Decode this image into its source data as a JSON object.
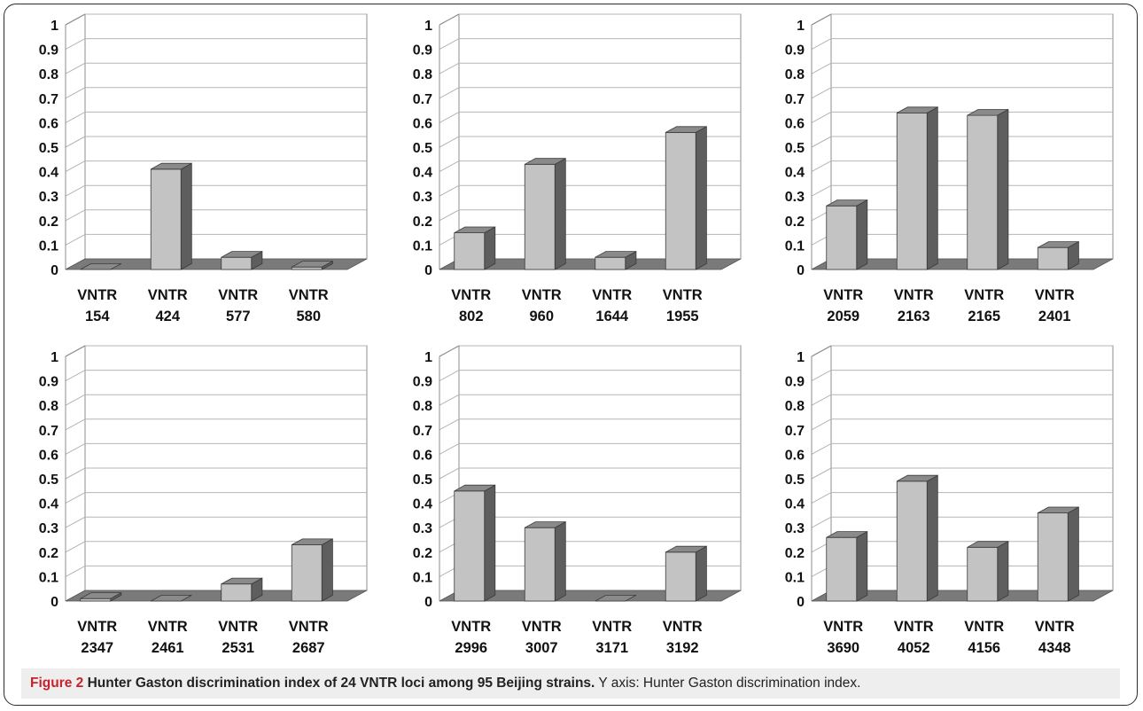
{
  "caption": {
    "label": "Figure 2",
    "title": "Hunter Gaston discrimination index of 24 VNTR loci among 95 Beijing strains.",
    "note": "Y axis: Hunter Gaston discrimination index."
  },
  "colors": {
    "bar_front": "#c3c3c3",
    "bar_top": "#8a8a8a",
    "bar_side": "#5e5e5e",
    "floor": "#7a7a7a",
    "grid": "#b5b5b5",
    "caption_label": "#c9202d"
  },
  "chart_data": [
    {
      "type": "bar",
      "style": "3d",
      "categories": [
        [
          "VNTR",
          "154"
        ],
        [
          "VNTR",
          "424"
        ],
        [
          "VNTR",
          "577"
        ],
        [
          "VNTR",
          "580"
        ]
      ],
      "values": [
        0.0,
        0.41,
        0.05,
        0.01
      ],
      "yticks": [
        "0",
        "0.1",
        "0.2",
        "0.3",
        "0.4",
        "0.5",
        "0.6",
        "0.7",
        "0.8",
        "0.9",
        "1"
      ],
      "ylim": [
        0,
        1
      ],
      "grid": true
    },
    {
      "type": "bar",
      "style": "3d",
      "categories": [
        [
          "VNTR",
          "802"
        ],
        [
          "VNTR",
          "960"
        ],
        [
          "VNTR",
          "1644"
        ],
        [
          "VNTR",
          "1955"
        ]
      ],
      "values": [
        0.15,
        0.43,
        0.05,
        0.56
      ],
      "yticks": [
        "0",
        "0.1",
        "0.2",
        "0.3",
        "0.4",
        "0.5",
        "0.6",
        "0.7",
        "0.8",
        "0.9",
        "1"
      ],
      "ylim": [
        0,
        1
      ],
      "grid": true
    },
    {
      "type": "bar",
      "style": "3d",
      "categories": [
        [
          "VNTR",
          "2059"
        ],
        [
          "VNTR",
          "2163"
        ],
        [
          "VNTR",
          "2165"
        ],
        [
          "VNTR",
          "2401"
        ]
      ],
      "values": [
        0.26,
        0.64,
        0.63,
        0.09
      ],
      "yticks": [
        "0",
        "0.1",
        "0.2",
        "0.3",
        "0.4",
        "0.5",
        "0.6",
        "0.7",
        "0.8",
        "0.9",
        "1"
      ],
      "ylim": [
        0,
        1
      ],
      "grid": true
    },
    {
      "type": "bar",
      "style": "3d",
      "categories": [
        [
          "VNTR",
          "2347"
        ],
        [
          "VNTR",
          "2461"
        ],
        [
          "VNTR",
          "2531"
        ],
        [
          "VNTR",
          "2687"
        ]
      ],
      "values": [
        0.01,
        0.0,
        0.07,
        0.23
      ],
      "yticks": [
        "0",
        "0.1",
        "0.2",
        "0.3",
        "0.4",
        "0.5",
        "0.6",
        "0.7",
        "0.8",
        "0.9",
        "1"
      ],
      "ylim": [
        0,
        1
      ],
      "grid": true
    },
    {
      "type": "bar",
      "style": "3d",
      "categories": [
        [
          "VNTR",
          "2996"
        ],
        [
          "VNTR",
          "3007"
        ],
        [
          "VNTR",
          "3171"
        ],
        [
          "VNTR",
          "3192"
        ]
      ],
      "values": [
        0.45,
        0.3,
        0.0,
        0.2
      ],
      "yticks": [
        "0",
        "0.1",
        "0.2",
        "0.3",
        "0.4",
        "0.5",
        "0.6",
        "0.7",
        "0.8",
        "0.9",
        "1"
      ],
      "ylim": [
        0,
        1
      ],
      "grid": true
    },
    {
      "type": "bar",
      "style": "3d",
      "categories": [
        [
          "VNTR",
          "3690"
        ],
        [
          "VNTR",
          "4052"
        ],
        [
          "VNTR",
          "4156"
        ],
        [
          "VNTR",
          "4348"
        ]
      ],
      "values": [
        0.26,
        0.49,
        0.22,
        0.36
      ],
      "yticks": [
        "0",
        "0.1",
        "0.2",
        "0.3",
        "0.4",
        "0.5",
        "0.6",
        "0.7",
        "0.8",
        "0.9",
        "1"
      ],
      "ylim": [
        0,
        1
      ],
      "grid": true
    }
  ]
}
